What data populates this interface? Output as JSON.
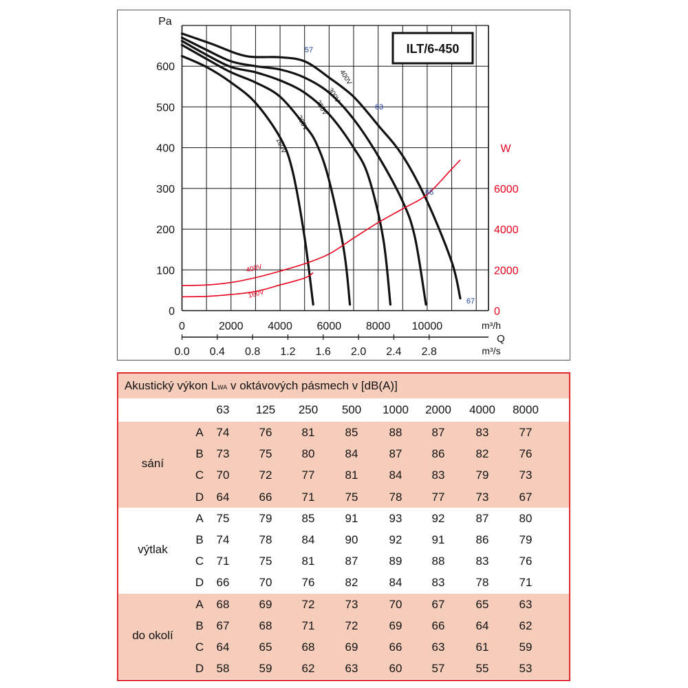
{
  "chart_data": {
    "type": "line",
    "title": "ILT/6-450",
    "y_axis": {
      "label": "Pa",
      "range": [
        0,
        700
      ],
      "ticks": [
        "0",
        "100",
        "200",
        "300",
        "400",
        "500",
        "600"
      ]
    },
    "y2_axis": {
      "label": "W",
      "range": [
        0,
        14000
      ],
      "ticks": [
        "0",
        "2000",
        "4000",
        "6000"
      ],
      "color": "#e8001c"
    },
    "x_axis": {
      "unit": "m³/h",
      "range": [
        0,
        12500
      ],
      "ticks": [
        "0",
        "2000",
        "4000",
        "6000",
        "8000",
        "10000"
      ]
    },
    "x2_axis": {
      "unit": "m³/s",
      "ticks": [
        "0.0",
        "0.4",
        "0.8",
        "1.2",
        "1.6",
        "2.0",
        "2.4",
        "2.8"
      ]
    },
    "q_label": "Q",
    "grid": true,
    "pressure_series": [
      {
        "name": "400V",
        "points": [
          [
            0,
            680
          ],
          [
            1200,
            655
          ],
          [
            2600,
            625
          ],
          [
            4000,
            622
          ],
          [
            5000,
            612
          ],
          [
            6000,
            572
          ],
          [
            7000,
            525
          ],
          [
            8000,
            455
          ],
          [
            9000,
            380
          ],
          [
            10000,
            268
          ],
          [
            11000,
            120
          ],
          [
            11350,
            30
          ]
        ]
      },
      {
        "name": "300V",
        "points": [
          [
            0,
            670
          ],
          [
            1000,
            640
          ],
          [
            2000,
            612
          ],
          [
            3000,
            600
          ],
          [
            4000,
            592
          ],
          [
            5000,
            572
          ],
          [
            6000,
            535
          ],
          [
            7000,
            470
          ],
          [
            8000,
            380
          ],
          [
            9000,
            268
          ],
          [
            9500,
            180
          ],
          [
            9950,
            15
          ]
        ]
      },
      {
        "name": "250V",
        "points": [
          [
            0,
            662
          ],
          [
            1000,
            628
          ],
          [
            2000,
            598
          ],
          [
            3000,
            585
          ],
          [
            4000,
            565
          ],
          [
            5000,
            535
          ],
          [
            6000,
            482
          ],
          [
            7000,
            400
          ],
          [
            7600,
            330
          ],
          [
            8200,
            180
          ],
          [
            8500,
            15
          ]
        ]
      },
      {
        "name": "200V",
        "points": [
          [
            0,
            652
          ],
          [
            1000,
            618
          ],
          [
            2000,
            585
          ],
          [
            3000,
            560
          ],
          [
            4000,
            525
          ],
          [
            5000,
            455
          ],
          [
            5500,
            408
          ],
          [
            6000,
            320
          ],
          [
            6600,
            150
          ],
          [
            6850,
            15
          ]
        ]
      },
      {
        "name": "160V",
        "points": [
          [
            0,
            625
          ],
          [
            1000,
            598
          ],
          [
            2000,
            560
          ],
          [
            3000,
            510
          ],
          [
            4000,
            425
          ],
          [
            4500,
            345
          ],
          [
            5000,
            180
          ],
          [
            5350,
            15
          ]
        ]
      }
    ],
    "power_series": [
      {
        "name": "400V",
        "points": [
          [
            0,
            1230
          ],
          [
            1000,
            1260
          ],
          [
            2000,
            1380
          ],
          [
            3000,
            1620
          ],
          [
            4000,
            1940
          ],
          [
            5000,
            2300
          ],
          [
            6000,
            2780
          ],
          [
            7000,
            3560
          ],
          [
            8000,
            4320
          ],
          [
            9000,
            5000
          ],
          [
            10000,
            5700
          ],
          [
            11000,
            6950
          ],
          [
            11350,
            7400
          ]
        ]
      },
      {
        "name": "160V",
        "points": [
          [
            0,
            680
          ],
          [
            1000,
            700
          ],
          [
            2000,
            790
          ],
          [
            3000,
            940
          ],
          [
            4000,
            1260
          ],
          [
            5000,
            1600
          ],
          [
            5350,
            1860
          ]
        ]
      }
    ],
    "annotations": [
      "57",
      "63",
      "66",
      "67"
    ]
  },
  "acoustic_table": {
    "title_prefix": "Akustický výkon L",
    "title_sub": "WA",
    "title_suffix": " v oktávových pásmech v [dB(A)]",
    "frequencies": [
      "63",
      "125",
      "250",
      "500",
      "1000",
      "2000",
      "4000",
      "8000"
    ],
    "groups": [
      {
        "name": "sání",
        "rows": [
          {
            "label": "A",
            "values": [
              "74",
              "76",
              "81",
              "85",
              "88",
              "87",
              "83",
              "77"
            ]
          },
          {
            "label": "B",
            "values": [
              "73",
              "75",
              "80",
              "84",
              "87",
              "86",
              "82",
              "76"
            ]
          },
          {
            "label": "C",
            "values": [
              "70",
              "72",
              "77",
              "81",
              "84",
              "83",
              "79",
              "73"
            ]
          },
          {
            "label": "D",
            "values": [
              "64",
              "66",
              "71",
              "75",
              "78",
              "77",
              "73",
              "67"
            ]
          }
        ]
      },
      {
        "name": "výtlak",
        "rows": [
          {
            "label": "A",
            "values": [
              "75",
              "79",
              "85",
              "91",
              "93",
              "92",
              "87",
              "80"
            ]
          },
          {
            "label": "B",
            "values": [
              "74",
              "78",
              "84",
              "90",
              "92",
              "91",
              "86",
              "79"
            ]
          },
          {
            "label": "C",
            "values": [
              "71",
              "75",
              "81",
              "87",
              "89",
              "88",
              "83",
              "76"
            ]
          },
          {
            "label": "D",
            "values": [
              "66",
              "70",
              "76",
              "82",
              "84",
              "83",
              "78",
              "71"
            ]
          }
        ]
      },
      {
        "name": "do okolí",
        "rows": [
          {
            "label": "A",
            "values": [
              "68",
              "69",
              "72",
              "73",
              "70",
              "67",
              "65",
              "63"
            ]
          },
          {
            "label": "B",
            "values": [
              "67",
              "68",
              "71",
              "72",
              "69",
              "66",
              "64",
              "62"
            ]
          },
          {
            "label": "C",
            "values": [
              "64",
              "65",
              "68",
              "69",
              "66",
              "63",
              "61",
              "59"
            ]
          },
          {
            "label": "D",
            "values": [
              "58",
              "59",
              "62",
              "63",
              "60",
              "57",
              "55",
              "53"
            ]
          }
        ]
      }
    ]
  },
  "colors": {
    "power": "#e8001c",
    "accent_border": "#e0262e",
    "table_shade": "#f6cdbb",
    "point_labels": "#2040a0"
  }
}
